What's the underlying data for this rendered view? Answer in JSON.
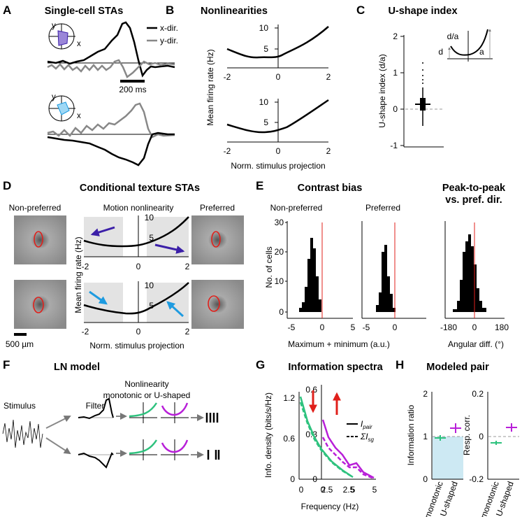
{
  "panels": {
    "A": {
      "letter": "A",
      "title": "Single-cell STAs",
      "legend": [
        "x-dir.",
        "y-dir."
      ],
      "scale_bar": "200 ms",
      "axis_x": "x",
      "axis_y": "y"
    },
    "B": {
      "letter": "B",
      "title": "Nonlinearities",
      "ylabel": "Mean firing rate (Hz)",
      "xlabel": "Norm. stimulus projection",
      "yticks": [
        "10",
        "5"
      ],
      "xticks": [
        "-2",
        "0",
        "2"
      ]
    },
    "C": {
      "letter": "C",
      "title": "U-shape index",
      "ylabel": "U-shape index (d/a)",
      "yticks": [
        "2",
        "1",
        "0",
        "-1"
      ],
      "inset": [
        "d/a",
        "d",
        "a"
      ]
    },
    "D": {
      "letter": "D",
      "title": "Conditional texture STAs",
      "headers": [
        "Non-preferred",
        "Motion nonlinearity",
        "Preferred"
      ],
      "ylabel": "Mean firing rate (Hz)",
      "xlabel": "Norm. stimulus projection",
      "yticks": [
        "10",
        "5"
      ],
      "xticks": [
        "-2",
        "0",
        "2"
      ],
      "scale_bar": "500 µm"
    },
    "E": {
      "letter": "E",
      "title": "Contrast bias",
      "title2": [
        "Peak-to-peak",
        "vs. pref. dir."
      ],
      "headers": [
        "Non-preferred",
        "Preferred"
      ],
      "ylabel": "No. of cells",
      "yticks": [
        "30",
        "20",
        "10",
        "0"
      ],
      "xticks1": [
        "-5",
        "0",
        "5"
      ],
      "xticks2": [
        "-5",
        "0"
      ],
      "xticks3": [
        "-180",
        "0",
        "180"
      ],
      "xlabel": "Maximum + minimum (a.u.)",
      "xlabel2": "Angular diff. (°)"
    },
    "F": {
      "letter": "F",
      "title": "LN model",
      "stimulus": "Stimulus",
      "filter": "Filter",
      "nonlinearity": [
        "Nonlinearity",
        "monotonic or U-shaped"
      ]
    },
    "G": {
      "letter": "G",
      "title": "Information spectra",
      "ylabel": "Info. density (bits/s/Hz)",
      "yticks1": [
        "1.2",
        "0.6",
        "0"
      ],
      "yticks2": [
        "0.6",
        "0.3",
        "0"
      ],
      "xticks": [
        "0",
        "2.5",
        "5"
      ],
      "xlabel": "Frequency (Hz)",
      "legend": [
        {
          "symbol": "I",
          "sub": "pair"
        },
        {
          "symbol": "ΣI",
          "sub": "sg"
        }
      ]
    },
    "H": {
      "letter": "H",
      "title": "Modeled pair",
      "ylabel1": "Information ratio",
      "ylabel2": "Resp. corr.",
      "yticks1": [
        "2",
        "1",
        "0"
      ],
      "yticks2": [
        "0.2",
        "0",
        "-0.2"
      ],
      "categories": [
        "monotonic",
        "U-shaped"
      ]
    }
  }
}
